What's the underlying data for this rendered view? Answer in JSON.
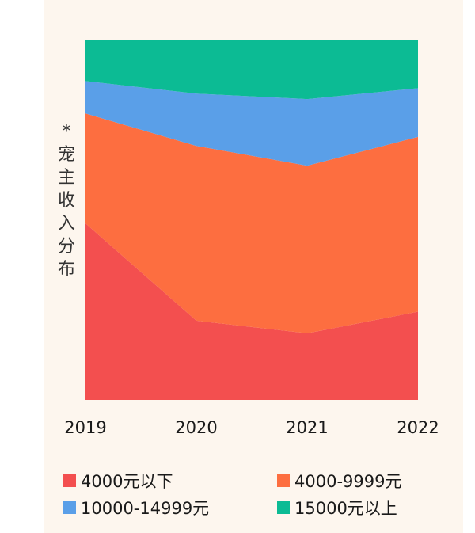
{
  "chart_data": {
    "type": "area",
    "stacked": true,
    "normalized": true,
    "ylabel": "* 宠主收入分布",
    "x": [
      "2019",
      "2020",
      "2021",
      "2022"
    ],
    "series": [
      {
        "name": "4000元以下",
        "color": "#f34f4f",
        "values": [
          49,
          22,
          18.5,
          24.5
        ]
      },
      {
        "name": "4000-9999元",
        "color": "#fd6e40",
        "values": [
          30.5,
          48.5,
          46.5,
          48.5
        ]
      },
      {
        "name": "10000-14999元",
        "color": "#5a9fe8",
        "values": [
          9,
          14.5,
          18.5,
          13.5
        ]
      },
      {
        "name": "15000元以上",
        "color": "#0cbb94",
        "values": [
          11.5,
          15,
          16.5,
          13.5
        ]
      }
    ],
    "ylim": [
      0,
      100
    ],
    "grid": false,
    "legend_position": "bottom"
  }
}
